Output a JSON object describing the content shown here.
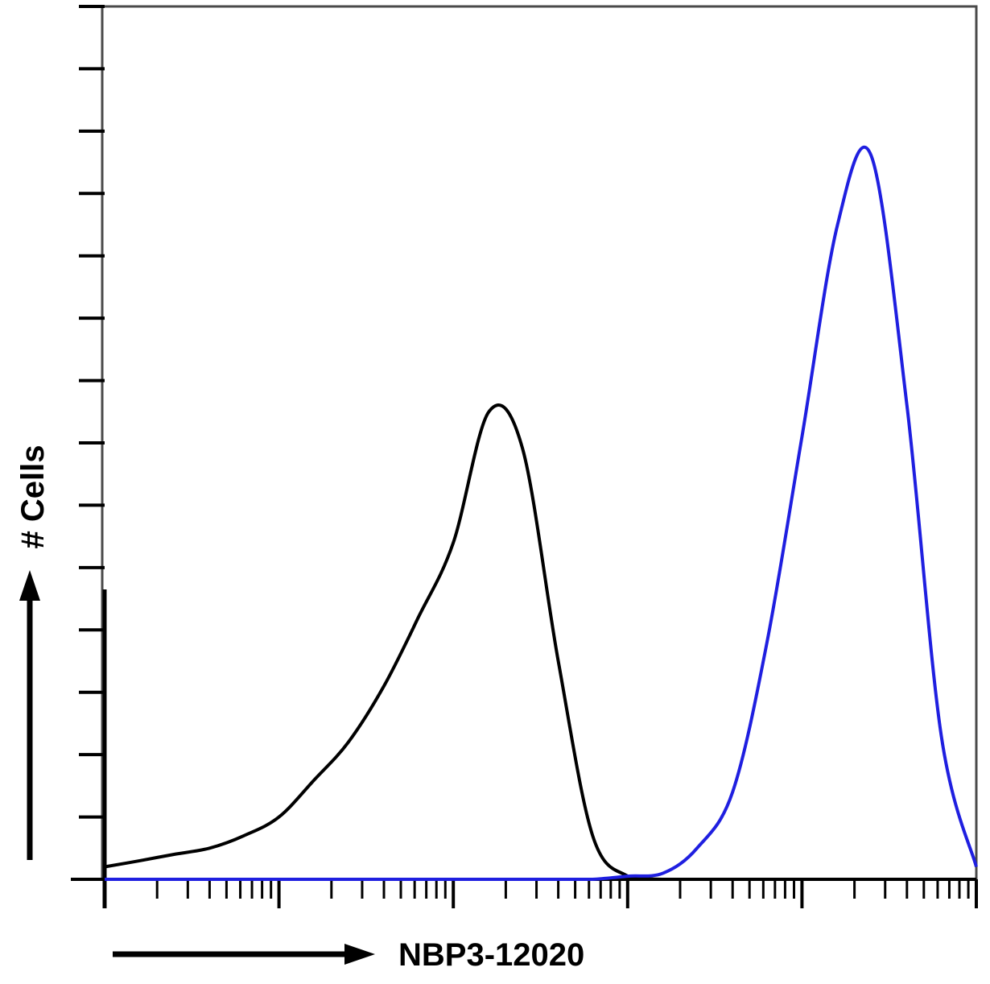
{
  "chart_data": {
    "type": "line",
    "title": "",
    "xlabel": "NBP3-12020",
    "ylabel": "# Cells",
    "x_scale": "log",
    "xlim": [
      1,
      100000
    ],
    "ylim": [
      0,
      140
    ],
    "grid": false,
    "legend": "none",
    "x": [
      1,
      1.6,
      2.5,
      4,
      6.3,
      10,
      16,
      25,
      40,
      63,
      100,
      160,
      250,
      400,
      630,
      1000,
      1600,
      2500,
      4000,
      6300,
      10000,
      16000,
      25000,
      40000,
      63000,
      100000
    ],
    "series": [
      {
        "color": "#000000",
        "values": [
          2,
          3,
          4,
          5,
          7,
          10,
          16,
          22,
          31,
          42,
          54,
          75,
          69,
          35,
          7,
          0.5,
          0,
          0,
          0,
          0,
          0,
          0,
          0,
          0,
          0,
          0
        ]
      },
      {
        "color": "#1f1fe0",
        "values": [
          0,
          0,
          0,
          0,
          0,
          0,
          0,
          0,
          0,
          0,
          0,
          0,
          0,
          0,
          0,
          0.5,
          1,
          5,
          14,
          38,
          71,
          105,
          116,
          76,
          23,
          2
        ]
      }
    ]
  }
}
